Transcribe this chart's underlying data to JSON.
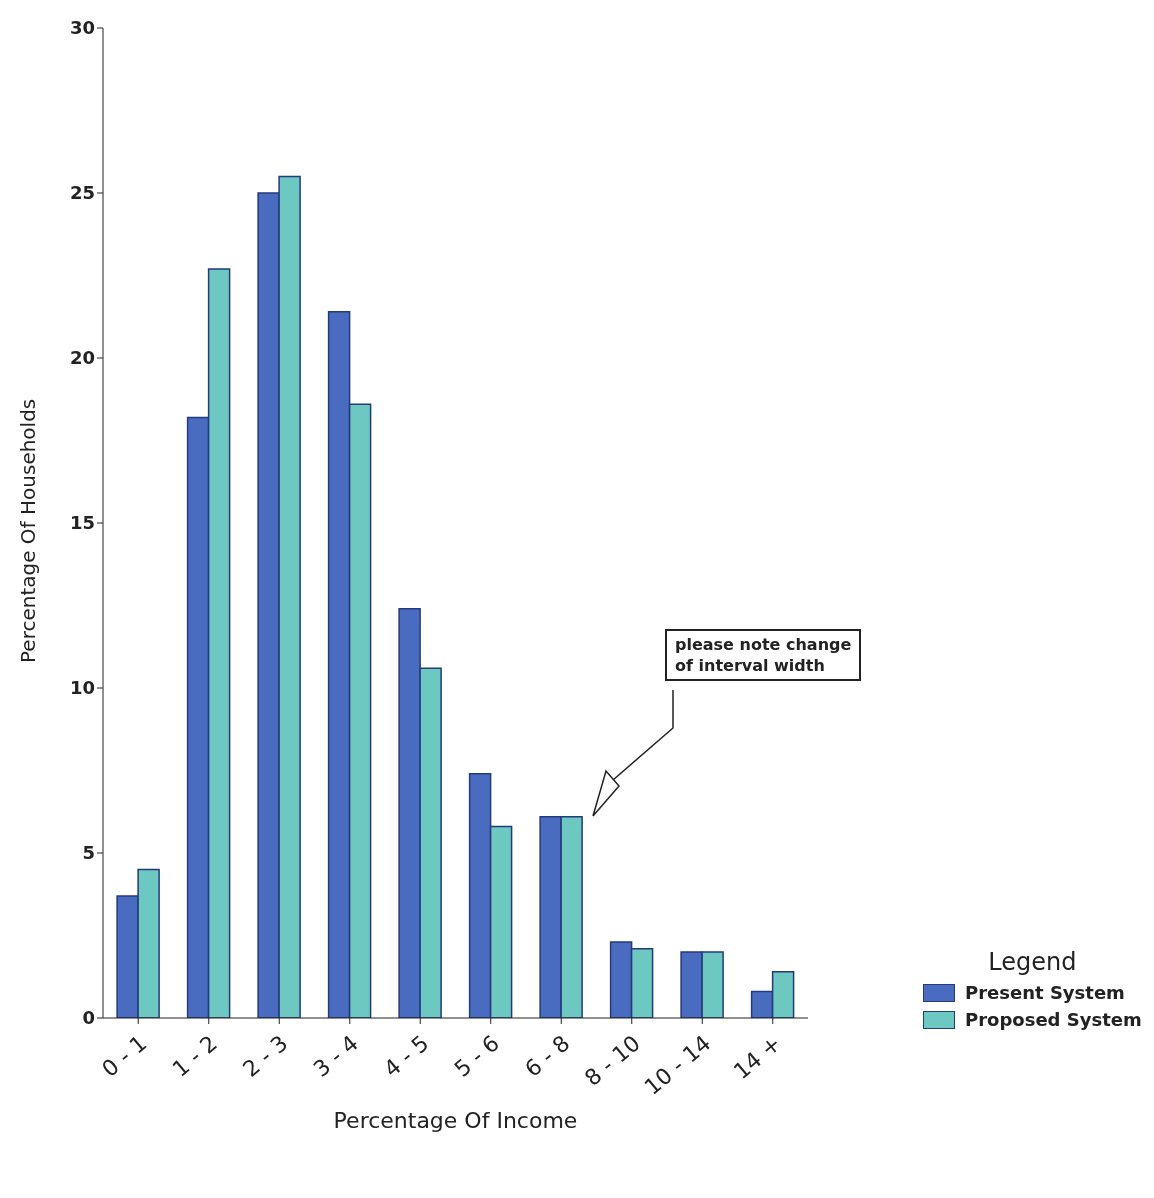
{
  "chart_data": {
    "type": "bar",
    "xlabel": "Percentage Of Income",
    "ylabel": "Percentage Of Households",
    "legend_title": "Legend",
    "legend": "bottom right",
    "categories": [
      "0 - 1",
      "1 - 2",
      "2 - 3",
      "3 - 4",
      "4 - 5",
      "5 - 6",
      "6 - 8",
      "8 - 10",
      "10 - 14",
      "14 +"
    ],
    "series": [
      {
        "name": "Present System",
        "color": "#4a6cc0",
        "values": [
          3.7,
          18.2,
          25.0,
          21.4,
          12.4,
          7.4,
          6.1,
          2.3,
          2.0,
          0.8
        ]
      },
      {
        "name": "Proposed System",
        "color": "#6cc8c0",
        "values": [
          4.5,
          22.7,
          25.5,
          18.6,
          10.6,
          5.8,
          6.1,
          2.1,
          2.0,
          1.4
        ]
      }
    ],
    "ylim": [
      0,
      30
    ],
    "yticks": [
      0,
      5,
      10,
      15,
      20,
      25,
      30
    ],
    "grid": false,
    "annotations": [
      "please note change of interval width"
    ]
  }
}
